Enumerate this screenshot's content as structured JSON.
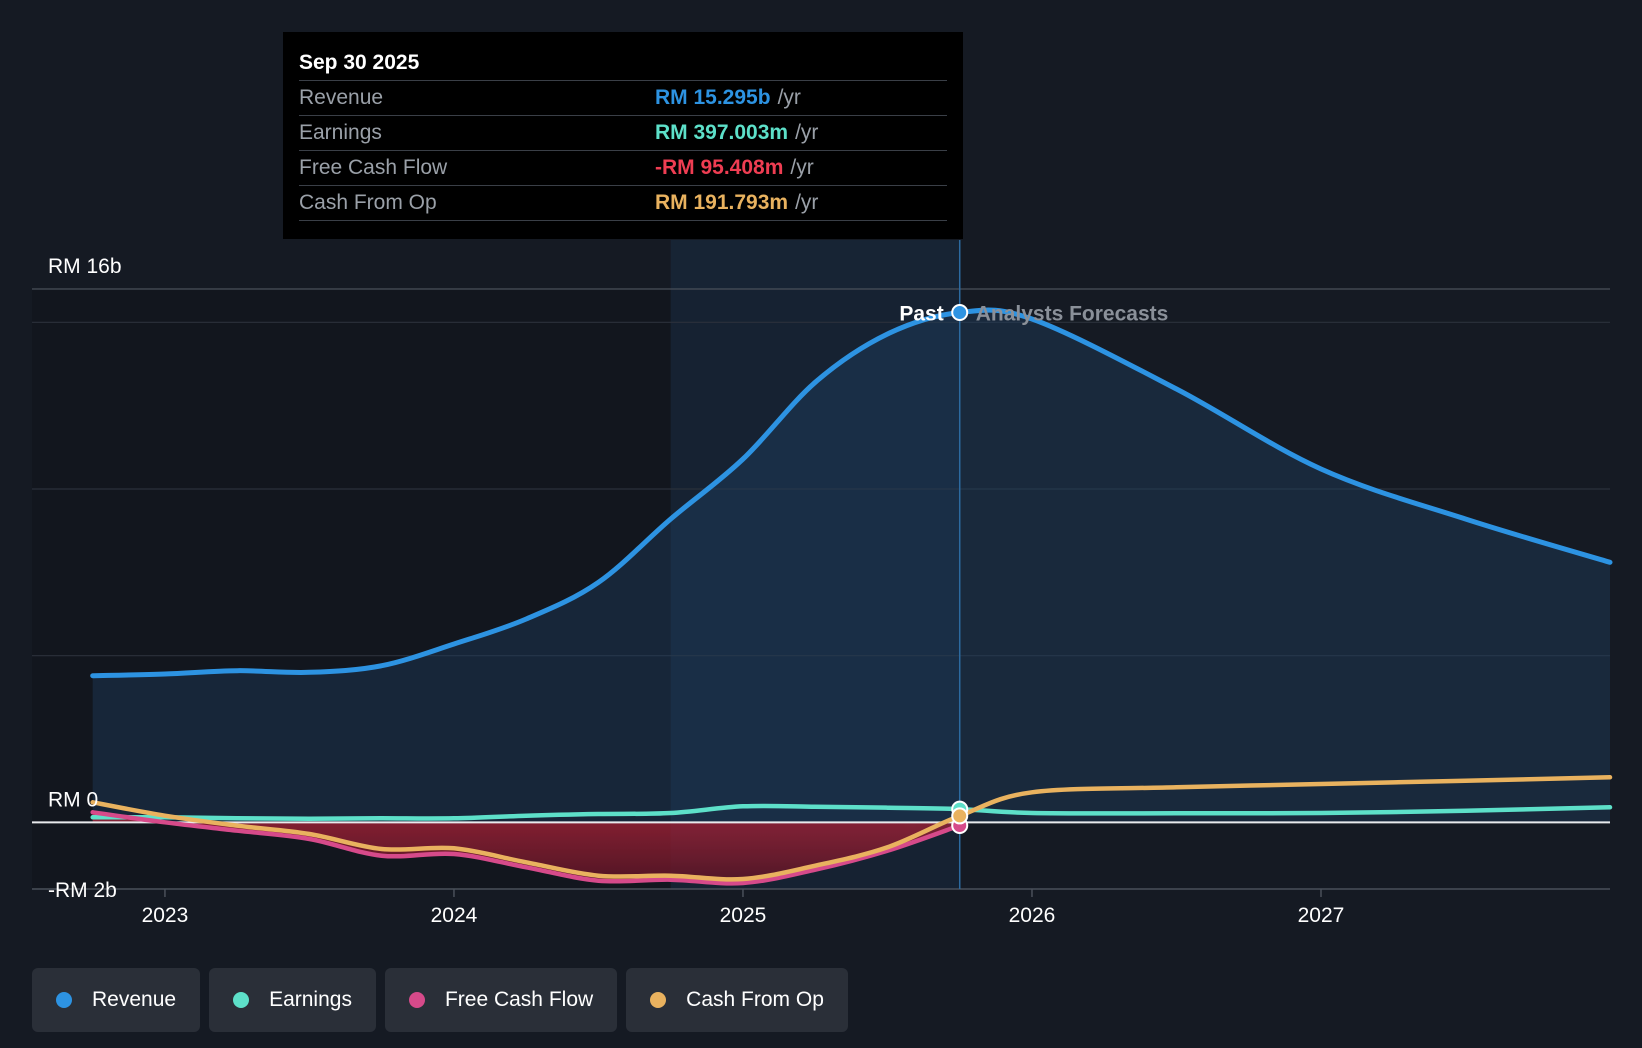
{
  "colors": {
    "revenue": "#2d93e2",
    "earnings": "#5de0c9",
    "free_cash_flow": "#d64a8a",
    "cash_from_op": "#e9b25f",
    "negative_text": "#ef3d52"
  },
  "tooltip": {
    "date": "Sep 30 2025",
    "rows": [
      {
        "label": "Revenue",
        "value": "RM 15.295b",
        "unit": "/yr"
      },
      {
        "label": "Earnings",
        "value": "RM 397.003m",
        "unit": "/yr"
      },
      {
        "label": "Free Cash Flow",
        "value": "-RM 95.408m",
        "unit": "/yr"
      },
      {
        "label": "Cash From Op",
        "value": "RM 191.793m",
        "unit": "/yr"
      }
    ]
  },
  "legend": [
    {
      "label": "Revenue",
      "color": "#2d93e2"
    },
    {
      "label": "Earnings",
      "color": "#5de0c9"
    },
    {
      "label": "Free Cash Flow",
      "color": "#d64a8a"
    },
    {
      "label": "Cash From Op",
      "color": "#e9b25f"
    }
  ],
  "chart_data": {
    "type": "area",
    "title": "",
    "xlabel": "",
    "ylabel": "",
    "y_tick_labels": [
      "RM 16b",
      "RM 0",
      "-RM 2b"
    ],
    "x_tick_labels": [
      "2023",
      "2024",
      "2025",
      "2026",
      "2027"
    ],
    "x_ticks": [
      2023.0,
      2024.0,
      2025.0,
      2026.0,
      2027.0
    ],
    "xlim": [
      2022.54,
      2028.0
    ],
    "ylim": [
      -2.0,
      16.0
    ],
    "divider_x": 2025.75,
    "highlight_range": [
      2024.75,
      2025.75
    ],
    "past_label": "Past",
    "forecast_label": "Analysts Forecasts",
    "series": [
      {
        "name": "Revenue",
        "key": "revenue",
        "fill": true,
        "x": [
          2022.75,
          2023.0,
          2023.25,
          2023.5,
          2023.75,
          2024.0,
          2024.25,
          2024.5,
          2024.75,
          2025.0,
          2025.25,
          2025.5,
          2025.75,
          2026.0,
          2026.5,
          2027.0,
          2027.5,
          2028.0
        ],
        "y": [
          4.4,
          4.45,
          4.55,
          4.5,
          4.7,
          5.35,
          6.1,
          7.2,
          9.1,
          10.9,
          13.2,
          14.65,
          15.295,
          15.1,
          13.0,
          10.6,
          9.1,
          7.8
        ]
      },
      {
        "name": "Earnings",
        "key": "earnings",
        "fill": false,
        "x": [
          2022.75,
          2023.0,
          2023.25,
          2023.5,
          2023.75,
          2024.0,
          2024.25,
          2024.5,
          2024.75,
          2025.0,
          2025.25,
          2025.5,
          2025.75,
          2026.0,
          2026.5,
          2027.0,
          2027.5,
          2028.0
        ],
        "y": [
          0.15,
          0.15,
          0.12,
          0.11,
          0.12,
          0.12,
          0.2,
          0.25,
          0.28,
          0.48,
          0.47,
          0.44,
          0.397,
          0.28,
          0.27,
          0.28,
          0.35,
          0.45
        ]
      },
      {
        "name": "Free Cash Flow",
        "key": "free_cash_flow",
        "fill": false,
        "x": [
          2022.75,
          2023.0,
          2023.25,
          2023.5,
          2023.75,
          2024.0,
          2024.25,
          2024.5,
          2024.75,
          2025.0,
          2025.25,
          2025.5,
          2025.75
        ],
        "y": [
          0.3,
          0.0,
          -0.25,
          -0.5,
          -1.0,
          -0.95,
          -1.35,
          -1.75,
          -1.72,
          -1.82,
          -1.42,
          -0.85,
          -0.095
        ]
      },
      {
        "name": "Cash From Op",
        "key": "cash_from_op",
        "fill": false,
        "x": [
          2022.75,
          2023.0,
          2023.25,
          2023.5,
          2023.75,
          2024.0,
          2024.25,
          2024.5,
          2024.75,
          2025.0,
          2025.25,
          2025.5,
          2025.75,
          2026.0,
          2026.5,
          2027.0,
          2027.5,
          2028.0
        ],
        "y": [
          0.6,
          0.2,
          -0.1,
          -0.35,
          -0.8,
          -0.78,
          -1.2,
          -1.6,
          -1.6,
          -1.7,
          -1.3,
          -0.75,
          0.192,
          0.9,
          1.05,
          1.15,
          1.25,
          1.35
        ]
      }
    ]
  }
}
